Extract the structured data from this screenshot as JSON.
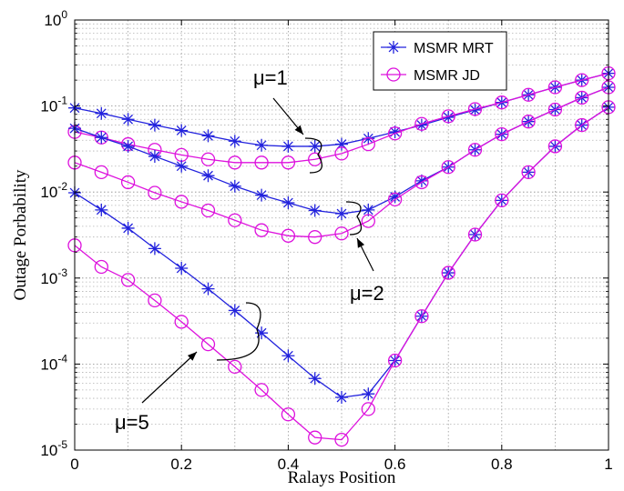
{
  "chart_data": {
    "type": "line",
    "title": "",
    "xlabel": "Ralays Position",
    "ylabel": "Outage Porbability",
    "xlim": [
      0,
      1
    ],
    "ylim": [
      1e-05,
      1
    ],
    "yscale": "log",
    "grid": true,
    "grid_minor": true,
    "legend_position": "top-right",
    "x_ticks": [
      "0",
      "0.2",
      "0.4",
      "0.6",
      "0.8",
      "1"
    ],
    "y_ticks": [
      {
        "base": "10",
        "exp": "0"
      },
      {
        "base": "10",
        "exp": "-1"
      },
      {
        "base": "10",
        "exp": "-2"
      },
      {
        "base": "10",
        "exp": "-3"
      },
      {
        "base": "10",
        "exp": "-4"
      },
      {
        "base": "10",
        "exp": "-5"
      }
    ],
    "x": [
      0,
      0.05,
      0.1,
      0.15,
      0.2,
      0.25,
      0.3,
      0.35,
      0.4,
      0.45,
      0.5,
      0.55,
      0.6,
      0.65,
      0.7,
      0.75,
      0.8,
      0.85,
      0.9,
      0.95,
      1
    ],
    "series": [
      {
        "name": "MSMR MRT",
        "mu": "1",
        "color": "#2222dd",
        "marker": "asterisk",
        "values": [
          0.095,
          0.082,
          0.07,
          0.06,
          0.052,
          0.045,
          0.039,
          0.035,
          0.034,
          0.034,
          0.036,
          0.042,
          0.05,
          0.06,
          0.074,
          0.09,
          0.11,
          0.135,
          0.165,
          0.2,
          0.24
        ]
      },
      {
        "name": "MSMR JD",
        "mu": "1",
        "color": "#dd11dd",
        "marker": "circle",
        "values": [
          0.05,
          0.043,
          0.036,
          0.031,
          0.027,
          0.024,
          0.022,
          0.022,
          0.022,
          0.024,
          0.028,
          0.036,
          0.048,
          0.062,
          0.076,
          0.092,
          0.11,
          0.135,
          0.165,
          0.2,
          0.24
        ]
      },
      {
        "name": "MSMR MRT",
        "mu": "2",
        "color": "#2222dd",
        "marker": "asterisk",
        "values": [
          0.055,
          0.043,
          0.034,
          0.026,
          0.02,
          0.0155,
          0.0117,
          0.0092,
          0.0075,
          0.0061,
          0.0056,
          0.0062,
          0.0088,
          0.0135,
          0.0195,
          0.031,
          0.047,
          0.066,
          0.091,
          0.125,
          0.165
        ]
      },
      {
        "name": "MSMR JD",
        "mu": "2",
        "color": "#dd11dd",
        "marker": "circle",
        "values": [
          0.022,
          0.017,
          0.013,
          0.0098,
          0.0077,
          0.0061,
          0.0047,
          0.0036,
          0.0031,
          0.003,
          0.0033,
          0.0046,
          0.0082,
          0.013,
          0.0195,
          0.031,
          0.047,
          0.066,
          0.091,
          0.125,
          0.165
        ]
      },
      {
        "name": "MSMR MRT",
        "mu": "5",
        "color": "#2222dd",
        "marker": "asterisk",
        "values": [
          0.0098,
          0.0062,
          0.0038,
          0.0022,
          0.0013,
          0.00075,
          0.00042,
          0.00023,
          0.000125,
          6.8e-05,
          4.1e-05,
          4.5e-05,
          0.00011,
          0.00036,
          0.00115,
          0.0032,
          0.008,
          0.017,
          0.034,
          0.06,
          0.097
        ]
      },
      {
        "name": "MSMR JD",
        "mu": "5",
        "color": "#dd11dd",
        "marker": "circle",
        "values": [
          0.0024,
          0.00135,
          0.00095,
          0.00055,
          0.00031,
          0.00017,
          9.3e-05,
          5e-05,
          2.6e-05,
          1.4e-05,
          1.32e-05,
          3e-05,
          0.00011,
          0.00036,
          0.00115,
          0.0032,
          0.008,
          0.017,
          0.034,
          0.06,
          0.097
        ]
      }
    ],
    "legend": [
      {
        "label": "MSMR MRT",
        "color": "#2222dd",
        "marker": "asterisk"
      },
      {
        "label": "MSMR JD",
        "color": "#dd11dd",
        "marker": "circle"
      }
    ],
    "annotations": [
      {
        "text": "μ=1",
        "target_x": 0.46,
        "target_y": 0.03
      },
      {
        "text": "μ=2",
        "target_x": 0.54,
        "target_y": 0.0038
      },
      {
        "text": "μ=5",
        "target_x": 0.26,
        "target_y": 0.00013
      }
    ]
  }
}
